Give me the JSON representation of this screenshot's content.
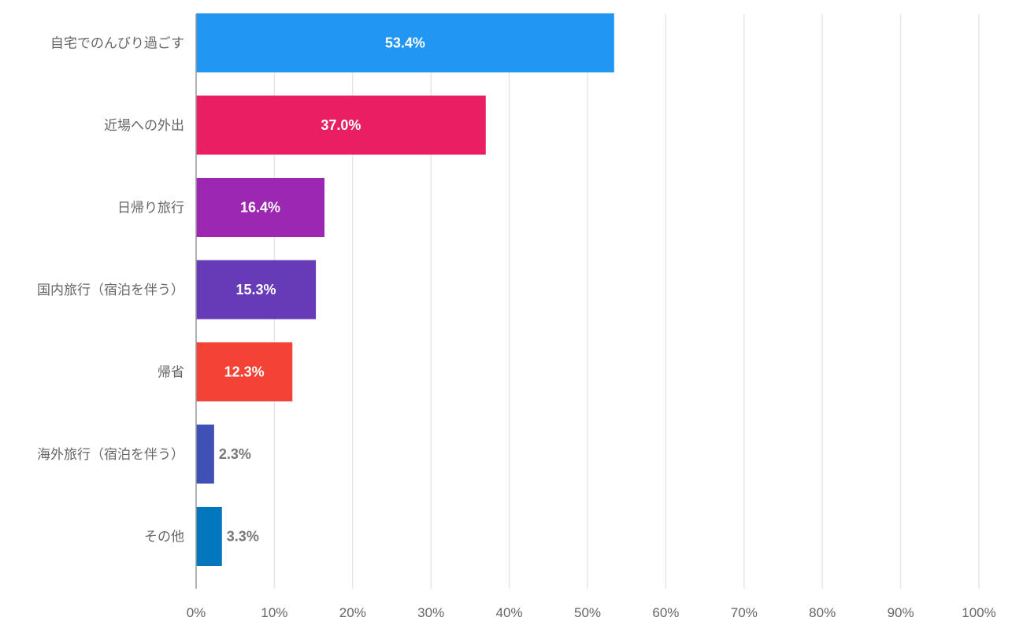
{
  "chart_data": {
    "type": "bar",
    "orientation": "horizontal",
    "title": "",
    "xlabel": "",
    "ylabel": "",
    "categories": [
      "自宅でのんびり過ごす",
      "近場への外出",
      "日帰り旅行",
      "国内旅行（宿泊を伴う）",
      "帰省",
      "海外旅行（宿泊を伴う）",
      "その他"
    ],
    "values": [
      53.4,
      37.0,
      16.4,
      15.3,
      12.3,
      2.3,
      3.3
    ],
    "value_labels": [
      "53.4%",
      "37.0%",
      "16.4%",
      "15.3%",
      "12.3%",
      "2.3%",
      "3.3%"
    ],
    "colors": [
      "#2196F3",
      "#E91E63",
      "#9C27B0",
      "#673AB7",
      "#F44336",
      "#3F51B5",
      "#0277BD"
    ],
    "xlim": [
      0,
      100
    ],
    "x_ticks": [
      0,
      10,
      20,
      30,
      40,
      50,
      60,
      70,
      80,
      90,
      100
    ],
    "x_tick_labels": [
      "0%",
      "10%",
      "20%",
      "30%",
      "40%",
      "50%",
      "60%",
      "70%",
      "80%",
      "90%",
      "100%"
    ],
    "grid": true,
    "legend": "none"
  }
}
